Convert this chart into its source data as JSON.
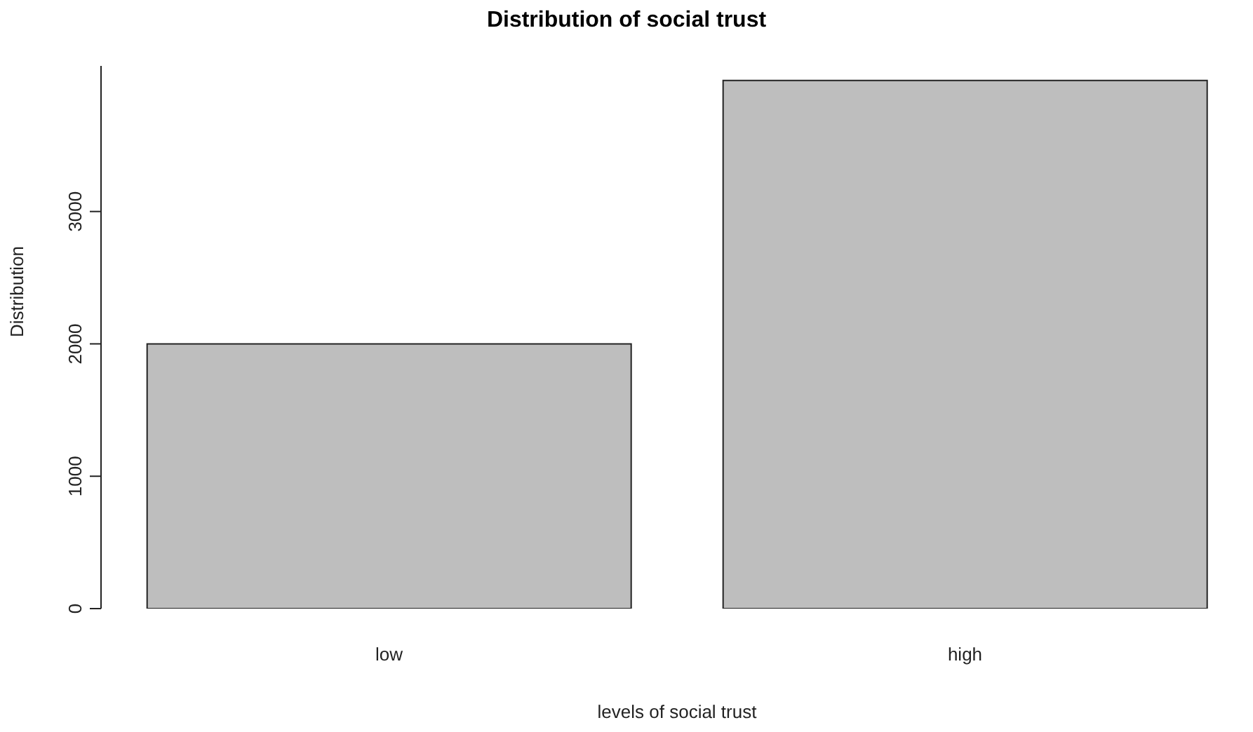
{
  "chart_data": {
    "type": "bar",
    "title": "Distribution of social trust",
    "xlabel": "levels of social trust",
    "ylabel": "Distribution",
    "categories": [
      "low",
      "high"
    ],
    "values": [
      2000,
      3990
    ],
    "color": "#bebebe",
    "ylim": [
      0,
      4100
    ],
    "yticks": [
      0,
      1000,
      2000,
      3000
    ],
    "grid": false
  }
}
